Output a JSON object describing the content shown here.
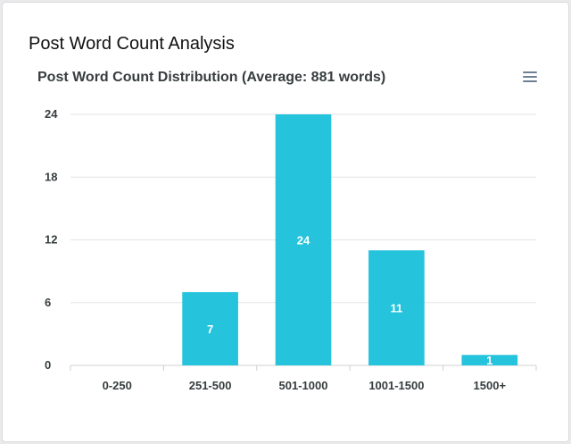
{
  "card": {
    "title": "Post Word Count Analysis"
  },
  "toolbar": {
    "menu_icon": "hamburger-menu-icon"
  },
  "colors": {
    "bar": "#26c3dc",
    "grid": "#e3e3e3",
    "axis": "#d0d0d0"
  },
  "chart_data": {
    "type": "bar",
    "title": "Post Word Count Distribution (Average: 881 words)",
    "categories": [
      "0-250",
      "251-500",
      "501-1000",
      "1001-1500",
      "1500+"
    ],
    "values": [
      0,
      7,
      24,
      11,
      1
    ],
    "ylim": [
      0,
      24
    ],
    "yticks": [
      0,
      6,
      12,
      18,
      24
    ],
    "xlabel": "",
    "ylabel": "",
    "grid": true,
    "data_labels": true
  }
}
